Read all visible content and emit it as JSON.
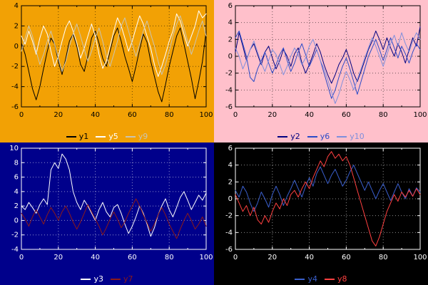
{
  "chart_data": [
    {
      "type": "line",
      "position": "top-left",
      "title": "",
      "xlabel": "",
      "ylabel": "",
      "x_range": [
        0,
        100
      ],
      "ylim": [
        -6,
        4
      ],
      "x_ticks": [
        0,
        20,
        40,
        60,
        80,
        100
      ],
      "x_minor_ticks": [
        10,
        30,
        50,
        70,
        90
      ],
      "y_ticks": [
        -6,
        -4,
        -2,
        0,
        2,
        4
      ],
      "grid": "dotted",
      "legend_position": "bottom",
      "background": "#f2a105",
      "foreground": "#000000",
      "series": [
        {
          "name": "y1",
          "color": "#000000",
          "values": [
            0.3,
            -0.8,
            -2.5,
            -4.2,
            -5.3,
            -4.0,
            -2.2,
            -0.5,
            0.8,
            0.2,
            -1.5,
            -2.8,
            -1.2,
            0.5,
            1.2,
            0.0,
            -1.8,
            -2.5,
            -1.0,
            0.8,
            1.5,
            0.3,
            -1.2,
            -2.0,
            -0.5,
            1.0,
            1.8,
            0.5,
            -1.0,
            -2.2,
            -3.5,
            -2.0,
            -0.3,
            1.2,
            0.4,
            -1.5,
            -3.0,
            -4.5,
            -5.5,
            -3.8,
            -2.0,
            -0.5,
            1.0,
            1.8,
            0.2,
            -1.5,
            -3.2,
            -5.2,
            -3.5,
            -1.5,
            1.5
          ]
        },
        {
          "name": "y5",
          "color": "#ffffff",
          "values": [
            1.0,
            0.2,
            1.5,
            0.5,
            -0.8,
            0.8,
            2.0,
            1.2,
            -0.5,
            -2.0,
            -1.0,
            0.5,
            1.8,
            2.5,
            1.5,
            0.3,
            -1.2,
            -0.2,
            1.0,
            2.2,
            1.0,
            -0.8,
            -2.2,
            -1.5,
            0.0,
            1.5,
            2.8,
            2.0,
            0.8,
            -0.5,
            0.5,
            1.8,
            3.0,
            2.2,
            1.0,
            -0.2,
            -1.8,
            -3.0,
            -2.0,
            -0.8,
            0.5,
            1.5,
            3.2,
            2.5,
            1.2,
            0.0,
            1.0,
            2.0,
            3.5,
            2.8,
            3.2
          ]
        },
        {
          "name": "y9",
          "color": "#c9c4b2",
          "values": [
            -0.5,
            0.8,
            2.0,
            1.0,
            -0.5,
            -1.8,
            -0.8,
            0.5,
            1.5,
            0.2,
            -1.2,
            -2.5,
            -1.5,
            0.0,
            1.2,
            2.2,
            1.0,
            -0.3,
            -1.5,
            -0.5,
            0.8,
            1.8,
            0.5,
            -1.0,
            -2.0,
            -0.8,
            0.5,
            2.0,
            2.8,
            1.5,
            0.2,
            -1.0,
            0.2,
            1.5,
            2.5,
            1.2,
            0.0,
            -1.5,
            -2.8,
            -1.8,
            -0.5,
            1.0,
            2.2,
            3.0,
            1.8,
            0.5,
            -0.8,
            0.3,
            1.5,
            2.5,
            1.0
          ]
        }
      ]
    },
    {
      "type": "line",
      "position": "top-right",
      "title": "",
      "xlabel": "",
      "ylabel": "",
      "x_range": [
        0,
        100
      ],
      "ylim": [
        -6,
        6
      ],
      "x_ticks": [
        0,
        20,
        40,
        60,
        80,
        100
      ],
      "x_minor_ticks": [
        10,
        30,
        50,
        70,
        90
      ],
      "y_ticks": [
        -6,
        -4,
        -2,
        0,
        2,
        4,
        6
      ],
      "grid": "dotted",
      "legend_position": "bottom",
      "background": "#ffc0cb",
      "foreground": "#000000",
      "series": [
        {
          "name": "y2",
          "color": "#000080",
          "values": [
            0.5,
            2.8,
            1.2,
            -0.5,
            0.8,
            1.5,
            0.2,
            -1.0,
            0.5,
            1.2,
            -0.2,
            -1.5,
            -0.5,
            0.8,
            0.0,
            -1.2,
            0.3,
            1.0,
            -0.8,
            -2.0,
            -1.0,
            0.2,
            1.5,
            0.5,
            -1.0,
            -2.2,
            -3.2,
            -2.2,
            -1.0,
            -0.2,
            0.8,
            -0.5,
            -2.0,
            -3.0,
            -1.8,
            -0.5,
            0.8,
            1.8,
            3.0,
            2.0,
            0.8,
            2.2,
            1.0,
            0.0,
            1.5,
            0.5,
            -0.8,
            0.8,
            2.2,
            1.2,
            3.5
          ]
        },
        {
          "name": "y6",
          "color": "#2b4bc8",
          "values": [
            2.2,
            3.0,
            1.5,
            0.0,
            -2.5,
            -3.0,
            -1.5,
            -0.5,
            0.5,
            -0.8,
            -2.0,
            -1.0,
            0.2,
            1.0,
            -0.5,
            -1.8,
            -0.8,
            0.5,
            1.5,
            0.2,
            -1.2,
            -0.2,
            0.8,
            -0.5,
            -2.0,
            -3.5,
            -5.0,
            -4.0,
            -2.5,
            -1.2,
            -0.2,
            -1.5,
            -3.0,
            -4.5,
            -3.0,
            -1.5,
            0.0,
            1.0,
            2.0,
            0.8,
            -0.5,
            0.8,
            2.2,
            1.0,
            -0.2,
            1.2,
            0.3,
            -0.8,
            0.5,
            1.5,
            0.8
          ]
        },
        {
          "name": "y10",
          "color": "#7f8fdc",
          "values": [
            1.0,
            0.0,
            -1.5,
            -0.5,
            0.8,
            1.8,
            0.5,
            -0.8,
            -1.8,
            -0.5,
            0.8,
            0.2,
            -1.0,
            -2.2,
            -1.2,
            0.0,
            1.0,
            0.2,
            -1.0,
            -0.2,
            1.2,
            2.0,
            0.8,
            -0.5,
            -1.5,
            -2.8,
            -4.2,
            -5.6,
            -4.5,
            -3.0,
            -1.8,
            -2.8,
            -4.0,
            -2.8,
            -1.5,
            -0.2,
            1.0,
            2.2,
            1.2,
            0.0,
            -1.2,
            0.2,
            1.5,
            2.5,
            1.2,
            2.8,
            1.5,
            0.5,
            1.8,
            2.8,
            2.0
          ]
        }
      ]
    },
    {
      "type": "line",
      "position": "bottom-left",
      "title": "",
      "xlabel": "",
      "ylabel": "",
      "x_range": [
        0,
        100
      ],
      "ylim": [
        -4,
        10
      ],
      "x_ticks": [
        0,
        20,
        40,
        60,
        80,
        100
      ],
      "x_minor_ticks": [
        10,
        30,
        50,
        70,
        90
      ],
      "y_ticks": [
        -4,
        -2,
        0,
        2,
        4,
        6,
        8,
        10
      ],
      "grid": "dotted",
      "legend_position": "bottom",
      "background": "#00008b",
      "foreground": "#ffffff",
      "series": [
        {
          "name": "y3",
          "color": "#ffffff",
          "values": [
            2.0,
            1.5,
            2.5,
            1.8,
            1.0,
            2.2,
            3.0,
            2.2,
            7.0,
            8.0,
            7.2,
            9.2,
            8.5,
            7.0,
            4.0,
            2.5,
            1.5,
            2.8,
            2.0,
            1.0,
            0.0,
            1.5,
            2.5,
            1.2,
            0.5,
            1.8,
            2.2,
            1.0,
            -0.5,
            -1.8,
            -0.8,
            0.5,
            2.0,
            1.0,
            -0.5,
            -2.2,
            -1.0,
            0.8,
            2.0,
            3.0,
            1.5,
            0.5,
            1.8,
            3.2,
            4.0,
            2.8,
            1.5,
            2.5,
            3.5,
            2.8,
            3.8
          ]
        },
        {
          "name": "y7",
          "color": "#8b1a1a",
          "values": [
            1.0,
            0.2,
            -0.8,
            0.5,
            1.5,
            0.5,
            -0.5,
            0.8,
            1.8,
            1.0,
            0.0,
            1.2,
            2.0,
            1.0,
            -0.2,
            -1.2,
            -0.2,
            1.0,
            2.2,
            1.2,
            0.2,
            -0.8,
            -2.0,
            -1.0,
            0.2,
            1.2,
            0.2,
            -1.0,
            -0.2,
            1.0,
            2.0,
            3.0,
            2.0,
            0.8,
            -0.3,
            -1.5,
            -0.5,
            0.8,
            1.8,
            0.8,
            -0.5,
            -1.5,
            -2.5,
            -1.2,
            0.0,
            1.0,
            0.0,
            -1.2,
            -0.5,
            0.5,
            -0.8
          ]
        }
      ]
    },
    {
      "type": "line",
      "position": "bottom-right",
      "title": "",
      "xlabel": "",
      "ylabel": "",
      "x_range": [
        0,
        100
      ],
      "ylim": [
        -6,
        6
      ],
      "x_ticks": [
        0,
        20,
        40,
        60,
        80,
        100
      ],
      "x_minor_ticks": [
        10,
        30,
        50,
        70,
        90
      ],
      "y_ticks": [
        -6,
        -4,
        -2,
        0,
        2,
        4,
        6
      ],
      "grid": "dotted",
      "legend_position": "bottom",
      "background": "#000000",
      "foreground": "#ffffff",
      "series": [
        {
          "name": "y4",
          "color": "#3a5fcd",
          "values": [
            1.0,
            0.2,
            1.5,
            0.8,
            -0.5,
            -1.5,
            -0.5,
            0.8,
            0.0,
            -1.0,
            0.5,
            1.5,
            0.5,
            -0.8,
            0.3,
            1.2,
            2.2,
            1.2,
            0.2,
            1.5,
            2.5,
            1.5,
            3.0,
            3.8,
            2.8,
            1.8,
            2.8,
            3.5,
            2.5,
            1.5,
            2.2,
            3.2,
            4.0,
            3.0,
            2.0,
            1.0,
            2.0,
            1.0,
            0.0,
            1.0,
            1.8,
            0.8,
            -0.2,
            0.8,
            1.8,
            0.8,
            0.0,
            1.2,
            0.3,
            1.3,
            0.8
          ]
        },
        {
          "name": "y8",
          "color": "#ff4040",
          "values": [
            0.5,
            -0.5,
            -1.5,
            -0.8,
            -2.0,
            -1.0,
            -2.5,
            -3.0,
            -2.0,
            -2.8,
            -1.5,
            -0.5,
            -1.2,
            0.0,
            -0.8,
            0.5,
            1.0,
            0.2,
            1.2,
            2.0,
            1.2,
            2.5,
            3.5,
            4.5,
            3.8,
            5.0,
            5.6,
            4.8,
            5.3,
            4.5,
            5.0,
            4.0,
            2.5,
            1.0,
            -0.5,
            -2.0,
            -3.5,
            -5.0,
            -5.6,
            -4.5,
            -3.0,
            -1.5,
            -0.5,
            0.5,
            -0.3,
            0.8,
            0.2,
            1.0,
            0.3,
            1.2,
            0.5
          ]
        }
      ]
    }
  ]
}
